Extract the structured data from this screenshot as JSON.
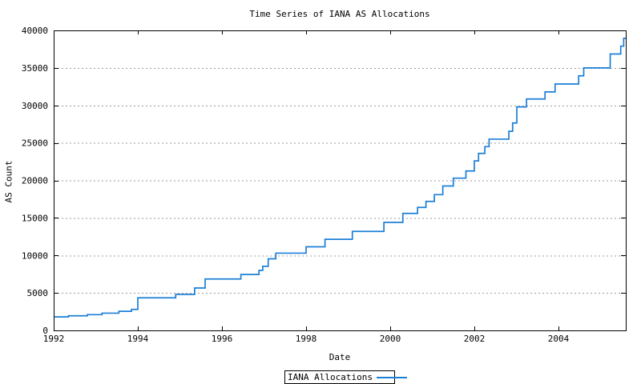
{
  "title": "Time Series of IANA AS Allocations",
  "axes": {
    "x": {
      "label": "Date",
      "ticks": [
        "1992",
        "1994",
        "1996",
        "1998",
        "2000",
        "2002",
        "2004"
      ],
      "range": [
        1992,
        2005.6
      ]
    },
    "y": {
      "label": "AS Count",
      "ticks": [
        "0",
        "5000",
        "10000",
        "15000",
        "20000",
        "25000",
        "30000",
        "35000",
        "40000"
      ],
      "range": [
        0,
        40000
      ]
    }
  },
  "legend": {
    "label": "IANA Allocations"
  },
  "colors": {
    "line": "#1c7fd6",
    "grid": "#9b9b9b",
    "border": "#000000",
    "text": "#000000",
    "background": "#ffffff"
  },
  "chart_data": {
    "type": "line",
    "line_style": "step-post",
    "title": "Time Series of IANA AS Allocations",
    "xlabel": "Date",
    "ylabel": "AS Count",
    "xlim": [
      1992,
      2005.6
    ],
    "ylim": [
      0,
      40000
    ],
    "grid": "horizontal-dashed",
    "legend_position": "below-plot-center",
    "series": [
      {
        "name": "IANA Allocations",
        "x": [
          1992.0,
          1992.35,
          1992.8,
          1993.15,
          1993.55,
          1993.85,
          1994.0,
          1994.9,
          1995.35,
          1995.6,
          1996.45,
          1996.88,
          1996.97,
          1997.1,
          1997.28,
          1998.0,
          1998.45,
          1999.1,
          1999.85,
          2000.3,
          2000.65,
          2000.85,
          2001.05,
          2001.25,
          2001.5,
          2001.8,
          2002.0,
          2002.1,
          2002.25,
          2002.35,
          2002.82,
          2002.91,
          2003.01,
          2003.24,
          2003.68,
          2003.92,
          2004.48,
          2004.6,
          2005.23,
          2005.48,
          2005.55
        ],
        "y": [
          1800,
          1950,
          2100,
          2300,
          2550,
          2800,
          4350,
          4800,
          5650,
          6850,
          7450,
          8000,
          8550,
          9550,
          10300,
          11150,
          12150,
          13200,
          14400,
          15600,
          16400,
          17200,
          18100,
          19250,
          20300,
          21250,
          22600,
          23600,
          24500,
          25500,
          26550,
          27650,
          29800,
          30850,
          31800,
          32850,
          33950,
          35000,
          36850,
          37900,
          38950
        ],
        "end_x": 2005.6
      }
    ]
  }
}
